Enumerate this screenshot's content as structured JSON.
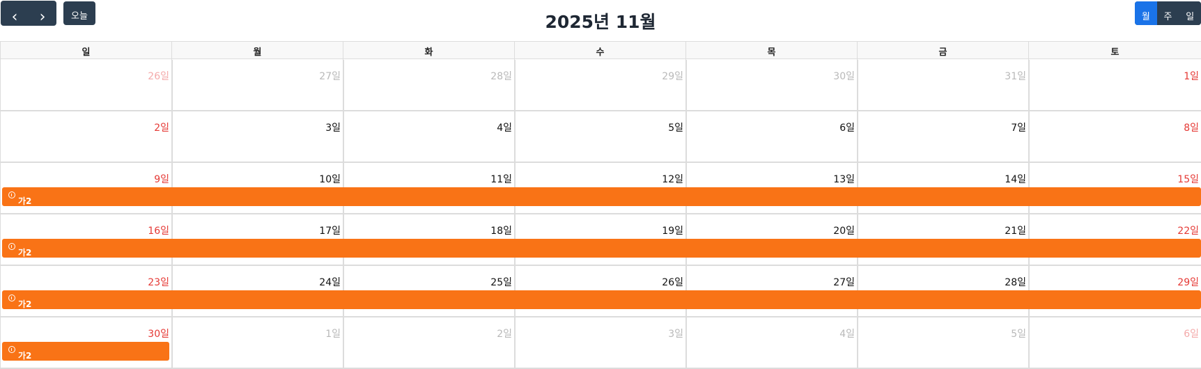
{
  "toolbar": {
    "prev_label": "‹",
    "next_label": "›",
    "today_label": "오늘",
    "title": "2025년 11월",
    "views": [
      {
        "label": "월",
        "active": true
      },
      {
        "label": "주",
        "active": false
      },
      {
        "label": "일",
        "active": false
      }
    ]
  },
  "weekdays": [
    "일",
    "월",
    "화",
    "수",
    "목",
    "금",
    "토"
  ],
  "weeks": [
    [
      {
        "label": "26일",
        "other": true
      },
      {
        "label": "27일",
        "other": true
      },
      {
        "label": "28일",
        "other": true
      },
      {
        "label": "29일",
        "other": true
      },
      {
        "label": "30일",
        "other": true
      },
      {
        "label": "31일",
        "other": true
      },
      {
        "label": "1일",
        "other": false
      }
    ],
    [
      {
        "label": "2일",
        "other": false
      },
      {
        "label": "3일",
        "other": false
      },
      {
        "label": "4일",
        "other": false
      },
      {
        "label": "5일",
        "other": false
      },
      {
        "label": "6일",
        "other": false
      },
      {
        "label": "7일",
        "other": false
      },
      {
        "label": "8일",
        "other": false
      }
    ],
    [
      {
        "label": "9일",
        "other": false
      },
      {
        "label": "10일",
        "other": false
      },
      {
        "label": "11일",
        "other": false
      },
      {
        "label": "12일",
        "other": false
      },
      {
        "label": "13일",
        "other": false
      },
      {
        "label": "14일",
        "other": false
      },
      {
        "label": "15일",
        "other": false
      }
    ],
    [
      {
        "label": "16일",
        "other": false
      },
      {
        "label": "17일",
        "other": false
      },
      {
        "label": "18일",
        "other": false
      },
      {
        "label": "19일",
        "other": false
      },
      {
        "label": "20일",
        "other": false
      },
      {
        "label": "21일",
        "other": false
      },
      {
        "label": "22일",
        "other": false
      }
    ],
    [
      {
        "label": "23일",
        "other": false
      },
      {
        "label": "24일",
        "other": false
      },
      {
        "label": "25일",
        "other": false
      },
      {
        "label": "26일",
        "other": false
      },
      {
        "label": "27일",
        "other": false
      },
      {
        "label": "28일",
        "other": false
      },
      {
        "label": "29일",
        "other": false
      }
    ],
    [
      {
        "label": "30일",
        "other": false
      },
      {
        "label": "1일",
        "other": true
      },
      {
        "label": "2일",
        "other": true
      },
      {
        "label": "3일",
        "other": true
      },
      {
        "label": "4일",
        "other": true
      },
      {
        "label": "5일",
        "other": true
      },
      {
        "label": "6일",
        "other": true
      }
    ]
  ],
  "events": [
    {
      "title": "가2",
      "week": 2,
      "start_day": 0,
      "end_day": 6,
      "icon": "alert-circle-icon",
      "color": "#f97316"
    },
    {
      "title": "가2",
      "week": 3,
      "start_day": 0,
      "end_day": 6,
      "icon": "alert-circle-icon",
      "color": "#f97316"
    },
    {
      "title": "가2",
      "week": 4,
      "start_day": 0,
      "end_day": 6,
      "icon": "alert-circle-icon",
      "color": "#f97316"
    },
    {
      "title": "가2",
      "week": 5,
      "start_day": 0,
      "end_day": 0,
      "icon": "alert-circle-icon",
      "color": "#f97316"
    }
  ],
  "colors": {
    "toolbar_button": "#2c3e50",
    "active_view": "#1a73e8",
    "weekend": "#e53935",
    "event": "#f97316"
  }
}
